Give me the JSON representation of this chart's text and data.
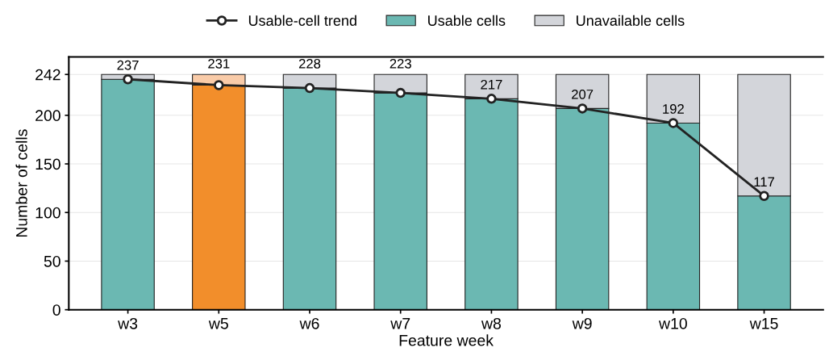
{
  "chart_data": {
    "type": "bar",
    "stacked": true,
    "xlabel": "Feature week",
    "ylabel": "Number of cells",
    "categories": [
      "w3",
      "w5",
      "w6",
      "w7",
      "w8",
      "w9",
      "w10",
      "w15"
    ],
    "series": [
      {
        "name": "Usable cells",
        "color": "#6bb8b2",
        "colors": [
          "#6bb8b2",
          "#f28e2b",
          "#6bb8b2",
          "#6bb8b2",
          "#6bb8b2",
          "#6bb8b2",
          "#6bb8b2",
          "#6bb8b2"
        ],
        "values": [
          237,
          231,
          228,
          223,
          217,
          207,
          192,
          117
        ]
      },
      {
        "name": "Unavailable cells",
        "color": "#d3d5da",
        "colors": [
          "#d3d5da",
          "#f9cba8",
          "#d3d5da",
          "#d3d5da",
          "#d3d5da",
          "#d3d5da",
          "#d3d5da",
          "#d3d5da"
        ],
        "values": [
          5,
          11,
          14,
          19,
          25,
          35,
          50,
          125
        ]
      },
      {
        "name": "Usable-cell trend",
        "type": "line",
        "color": "#222222",
        "marker": "circle",
        "line_style": "solid",
        "data_labels": true,
        "values": [
          237,
          231,
          228,
          223,
          217,
          207,
          192,
          117
        ]
      }
    ],
    "ylim": [
      0,
      260
    ],
    "yticks": [
      0,
      50,
      100,
      150,
      200,
      242
    ],
    "grid": "y",
    "legend": "top"
  }
}
